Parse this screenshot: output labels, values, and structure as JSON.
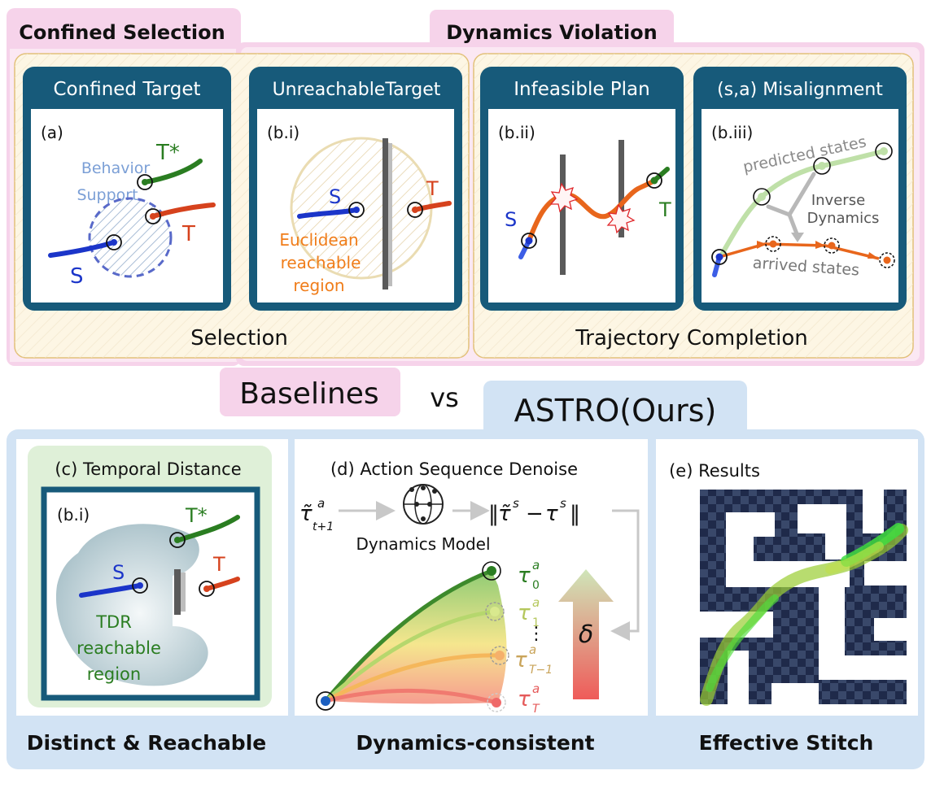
{
  "headers": {
    "confined_selection": "Confined Selection",
    "dynamics_violation": "Dynamics Violation"
  },
  "panels": {
    "a": {
      "title": "Confined Target",
      "tag": "(a)",
      "behavior_support": [
        "Behavior",
        "Support"
      ],
      "s": "S",
      "t": "T",
      "t_star": "T*"
    },
    "bi": {
      "title": "UnreachableTarget",
      "tag": "(b.i)",
      "s": "S",
      "t": "T",
      "region": [
        "Euclidean",
        "reachable",
        "region"
      ]
    },
    "bii": {
      "title": "Infeasible Plan",
      "tag": "(b.ii)",
      "s": "S",
      "t": "T"
    },
    "biii": {
      "title": "(s,a) Misalignment",
      "tag": "(b.iii)",
      "predicted": "predicted states",
      "inverse": [
        "Inverse",
        "Dynamics"
      ],
      "arrived": "arrived states"
    }
  },
  "group_labels": {
    "selection": "Selection",
    "trajectory_completion": "Trajectory Completion"
  },
  "middle": {
    "baselines": "Baselines",
    "vs": "vs",
    "astro": "ASTRO(Ours)"
  },
  "bottom": {
    "c": {
      "title": "(c) Temporal Distance",
      "tag": "(b.i)",
      "s": "S",
      "t": "T",
      "t_star": "T*",
      "region": [
        "TDR",
        "reachable",
        "region"
      ]
    },
    "d": {
      "title": "(d) Action Sequence Denoise",
      "model": "Dynamics Model",
      "delta": "δ",
      "dots": "⋮"
    },
    "e": {
      "title": "(e) Results"
    }
  },
  "footer": {
    "distinct": "Distinct & Reachable",
    "dynamics_consistent": "Dynamics-consistent",
    "effective": "Effective Stitch"
  },
  "colors": {
    "pink": "#f6d3ea",
    "panel_title": "#175a7a",
    "light_blue": "#d2e3f4",
    "green_panel": "#dff0d8",
    "blue": "#1b35c9",
    "red": "#d6421d",
    "green": "#2a7d21",
    "orange": "#f07d1a"
  }
}
